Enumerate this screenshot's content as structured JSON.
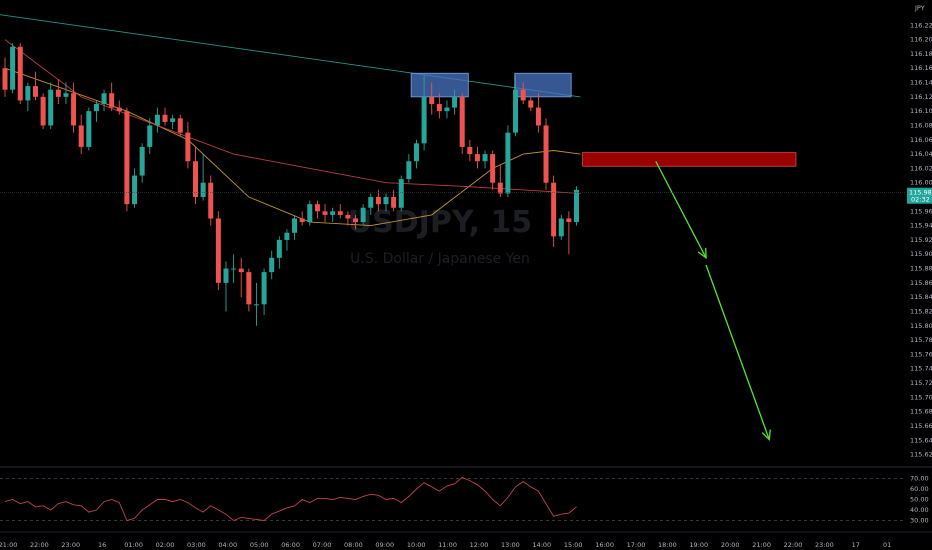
{
  "chart_data": {
    "type": "candlestick",
    "symbol_watermark": "USDJPY, 15",
    "watermark_subtitle": "U.S. Dollar / Japanese Yen",
    "currency": "JPY",
    "price_axis": {
      "ylim": [
        115.618,
        116.24
      ],
      "ticks": [
        "116.220",
        "116.200",
        "116.180",
        "116.160",
        "116.140",
        "116.120",
        "116.100",
        "116.080",
        "116.060",
        "116.040",
        "116.020",
        "116.000",
        "115.980",
        "115.960",
        "115.940",
        "115.920",
        "115.900",
        "115.880",
        "115.860",
        "115.840",
        "115.820",
        "115.800",
        "115.780",
        "115.760",
        "115.740",
        "115.720",
        "115.700",
        "115.680",
        "115.660",
        "115.640",
        "115.620"
      ],
      "last_price": "115.986",
      "countdown": "02:32"
    },
    "time_axis": {
      "labels": [
        "21:00",
        "22:00",
        "23:00",
        "16",
        "01:00",
        "02:00",
        "03:00",
        "04:00",
        "05:00",
        "06:00",
        "07:00",
        "08:00",
        "09:00",
        "10:00",
        "11:00",
        "12:00",
        "13:00",
        "14:00",
        "15:00",
        "16:00",
        "17:00",
        "18:00",
        "19:00",
        "20:00",
        "21:00",
        "22:00",
        "23:00",
        "17",
        "01"
      ]
    },
    "candles": [
      {
        "o": 116.16,
        "h": 116.175,
        "l": 116.12,
        "c": 116.13
      },
      {
        "o": 116.13,
        "h": 116.195,
        "l": 116.125,
        "c": 116.19
      },
      {
        "o": 116.19,
        "h": 116.195,
        "l": 116.11,
        "c": 116.115
      },
      {
        "o": 116.115,
        "h": 116.14,
        "l": 116.1,
        "c": 116.135
      },
      {
        "o": 116.135,
        "h": 116.155,
        "l": 116.115,
        "c": 116.12
      },
      {
        "o": 116.12,
        "h": 116.125,
        "l": 116.075,
        "c": 116.08
      },
      {
        "o": 116.08,
        "h": 116.14,
        "l": 116.075,
        "c": 116.13
      },
      {
        "o": 116.13,
        "h": 116.145,
        "l": 116.11,
        "c": 116.12
      },
      {
        "o": 116.12,
        "h": 116.14,
        "l": 116.11,
        "c": 116.125
      },
      {
        "o": 116.125,
        "h": 116.14,
        "l": 116.07,
        "c": 116.08
      },
      {
        "o": 116.08,
        "h": 116.095,
        "l": 116.04,
        "c": 116.05
      },
      {
        "o": 116.05,
        "h": 116.105,
        "l": 116.045,
        "c": 116.1
      },
      {
        "o": 116.1,
        "h": 116.115,
        "l": 116.085,
        "c": 116.11
      },
      {
        "o": 116.11,
        "h": 116.13,
        "l": 116.1,
        "c": 116.125
      },
      {
        "o": 116.125,
        "h": 116.14,
        "l": 116.1,
        "c": 116.105
      },
      {
        "o": 116.105,
        "h": 116.115,
        "l": 116.095,
        "c": 116.1
      },
      {
        "o": 116.1,
        "h": 116.105,
        "l": 115.96,
        "c": 115.97
      },
      {
        "o": 115.97,
        "h": 116.02,
        "l": 115.965,
        "c": 116.01
      },
      {
        "o": 116.01,
        "h": 116.055,
        "l": 116.0,
        "c": 116.05
      },
      {
        "o": 116.05,
        "h": 116.09,
        "l": 116.04,
        "c": 116.08
      },
      {
        "o": 116.08,
        "h": 116.105,
        "l": 116.07,
        "c": 116.095
      },
      {
        "o": 116.095,
        "h": 116.105,
        "l": 116.08,
        "c": 116.085
      },
      {
        "o": 116.085,
        "h": 116.095,
        "l": 116.075,
        "c": 116.09
      },
      {
        "o": 116.09,
        "h": 116.095,
        "l": 116.065,
        "c": 116.07
      },
      {
        "o": 116.07,
        "h": 116.085,
        "l": 116.02,
        "c": 116.03
      },
      {
        "o": 116.03,
        "h": 116.05,
        "l": 115.97,
        "c": 115.98
      },
      {
        "o": 115.98,
        "h": 116.04,
        "l": 115.975,
        "c": 116.0
      },
      {
        "o": 116.0,
        "h": 116.01,
        "l": 115.94,
        "c": 115.95
      },
      {
        "o": 115.95,
        "h": 115.96,
        "l": 115.85,
        "c": 115.86
      },
      {
        "o": 115.86,
        "h": 115.89,
        "l": 115.82,
        "c": 115.88
      },
      {
        "o": 115.88,
        "h": 115.9,
        "l": 115.86,
        "c": 115.88
      },
      {
        "o": 115.88,
        "h": 115.895,
        "l": 115.84,
        "c": 115.875
      },
      {
        "o": 115.875,
        "h": 115.88,
        "l": 115.82,
        "c": 115.83
      },
      {
        "o": 115.83,
        "h": 115.86,
        "l": 115.8,
        "c": 115.83
      },
      {
        "o": 115.83,
        "h": 115.88,
        "l": 115.815,
        "c": 115.875
      },
      {
        "o": 115.875,
        "h": 115.905,
        "l": 115.865,
        "c": 115.895
      },
      {
        "o": 115.895,
        "h": 115.925,
        "l": 115.88,
        "c": 115.92
      },
      {
        "o": 115.92,
        "h": 115.935,
        "l": 115.905,
        "c": 115.93
      },
      {
        "o": 115.93,
        "h": 115.955,
        "l": 115.92,
        "c": 115.95
      },
      {
        "o": 115.95,
        "h": 115.96,
        "l": 115.94,
        "c": 115.945
      },
      {
        "o": 115.945,
        "h": 115.975,
        "l": 115.94,
        "c": 115.97
      },
      {
        "o": 115.97,
        "h": 115.975,
        "l": 115.95,
        "c": 115.96
      },
      {
        "o": 115.96,
        "h": 115.97,
        "l": 115.945,
        "c": 115.955
      },
      {
        "o": 115.955,
        "h": 115.965,
        "l": 115.945,
        "c": 115.96
      },
      {
        "o": 115.96,
        "h": 115.97,
        "l": 115.95,
        "c": 115.955
      },
      {
        "o": 115.955,
        "h": 115.96,
        "l": 115.94,
        "c": 115.95
      },
      {
        "o": 115.95,
        "h": 115.955,
        "l": 115.935,
        "c": 115.945
      },
      {
        "o": 115.945,
        "h": 115.97,
        "l": 115.94,
        "c": 115.965
      },
      {
        "o": 115.965,
        "h": 115.985,
        "l": 115.955,
        "c": 115.98
      },
      {
        "o": 115.98,
        "h": 115.99,
        "l": 115.96,
        "c": 115.97
      },
      {
        "o": 115.97,
        "h": 115.985,
        "l": 115.96,
        "c": 115.98
      },
      {
        "o": 115.98,
        "h": 115.99,
        "l": 115.96,
        "c": 115.965
      },
      {
        "o": 115.965,
        "h": 116.01,
        "l": 115.96,
        "c": 116.005
      },
      {
        "o": 116.005,
        "h": 116.04,
        "l": 116.0,
        "c": 116.03
      },
      {
        "o": 116.03,
        "h": 116.06,
        "l": 116.02,
        "c": 116.055
      },
      {
        "o": 116.055,
        "h": 116.15,
        "l": 116.045,
        "c": 116.12
      },
      {
        "o": 116.12,
        "h": 116.14,
        "l": 116.095,
        "c": 116.11
      },
      {
        "o": 116.11,
        "h": 116.125,
        "l": 116.09,
        "c": 116.1
      },
      {
        "o": 116.1,
        "h": 116.115,
        "l": 116.09,
        "c": 116.105
      },
      {
        "o": 116.105,
        "h": 116.13,
        "l": 116.095,
        "c": 116.12
      },
      {
        "o": 116.12,
        "h": 116.125,
        "l": 116.04,
        "c": 116.05
      },
      {
        "o": 116.05,
        "h": 116.06,
        "l": 116.03,
        "c": 116.04
      },
      {
        "o": 116.04,
        "h": 116.05,
        "l": 116.02,
        "c": 116.03
      },
      {
        "o": 116.03,
        "h": 116.045,
        "l": 116.02,
        "c": 116.04
      },
      {
        "o": 116.04,
        "h": 116.045,
        "l": 115.99,
        "c": 116.0
      },
      {
        "o": 116.0,
        "h": 116.025,
        "l": 115.98,
        "c": 115.985
      },
      {
        "o": 115.985,
        "h": 116.08,
        "l": 115.98,
        "c": 116.07
      },
      {
        "o": 116.07,
        "h": 116.15,
        "l": 116.065,
        "c": 116.13
      },
      {
        "o": 116.13,
        "h": 116.14,
        "l": 116.11,
        "c": 116.115
      },
      {
        "o": 116.115,
        "h": 116.12,
        "l": 116.1,
        "c": 116.105
      },
      {
        "o": 116.105,
        "h": 116.125,
        "l": 116.07,
        "c": 116.08
      },
      {
        "o": 116.08,
        "h": 116.09,
        "l": 115.99,
        "c": 116.0
      },
      {
        "o": 116.0,
        "h": 116.01,
        "l": 115.91,
        "c": 115.925
      },
      {
        "o": 115.925,
        "h": 115.955,
        "l": 115.92,
        "c": 115.95
      },
      {
        "o": 115.95,
        "h": 115.96,
        "l": 115.9,
        "c": 115.945
      },
      {
        "o": 115.945,
        "h": 115.995,
        "l": 115.94,
        "c": 115.99
      }
    ],
    "moving_averages": [
      {
        "color": "#2bb3a3",
        "points": [
          [
            -4,
            116.2398
          ],
          [
            75.5,
            116.12
          ]
        ]
      },
      {
        "color": "#e0aa3a",
        "points": [
          [
            0,
            116.16
          ],
          [
            8,
            116.13
          ],
          [
            16,
            116.1
          ],
          [
            24,
            116.06
          ],
          [
            32,
            115.98
          ],
          [
            40,
            115.945
          ],
          [
            48,
            115.94
          ],
          [
            56,
            115.955
          ],
          [
            64,
            116.02
          ],
          [
            68,
            116.04
          ],
          [
            72,
            116.045
          ],
          [
            75.5,
            116.04
          ]
        ]
      },
      {
        "color": "#d84b4b",
        "points": [
          [
            0,
            116.2
          ],
          [
            10,
            116.12
          ],
          [
            20,
            116.08
          ],
          [
            30,
            116.04
          ],
          [
            40,
            116.02
          ],
          [
            50,
            116.0
          ],
          [
            60,
            115.995
          ],
          [
            68,
            115.99
          ],
          [
            75.5,
            115.985
          ]
        ]
      }
    ],
    "zones": [
      {
        "type": "resistance_top",
        "color": "#4a74c4",
        "x0": 53.3,
        "x1": 60.8,
        "y0": 116.12,
        "y1": 116.153
      },
      {
        "type": "resistance_top",
        "color": "#4a74c4",
        "x0": 66.9,
        "x1": 74.3,
        "y0": 116.12,
        "y1": 116.153
      },
      {
        "type": "supply",
        "color": "#a30000",
        "x0": 75.8,
        "x1": 103.8,
        "y0": 116.023,
        "y1": 116.042
      }
    ],
    "arrows": [
      {
        "color": "#55e62a",
        "points": [
          [
            85.4,
            116.03
          ],
          [
            92.0,
            115.895
          ]
        ]
      },
      {
        "color": "#55e62a",
        "points": [
          [
            92.0,
            115.885
          ],
          [
            100.3,
            115.641
          ]
        ]
      }
    ],
    "oscillator": {
      "ylim": [
        20,
        80
      ],
      "ticks": [
        "70.00",
        "60.00",
        "50.00",
        "40.00",
        "30.00"
      ],
      "levels": [
        70,
        30
      ],
      "values": [
        48,
        50,
        46,
        48,
        43,
        44,
        40,
        46,
        48,
        45,
        44,
        38,
        40,
        48,
        50,
        47,
        30,
        32,
        40,
        45,
        50,
        50,
        48,
        50,
        47,
        42,
        38,
        44,
        40,
        36,
        30,
        33,
        32,
        31,
        30,
        36,
        39,
        42,
        44,
        50,
        47,
        51,
        51,
        50,
        52,
        51,
        50,
        53,
        55,
        54,
        50,
        51,
        47,
        53,
        60,
        66,
        62,
        58,
        63,
        65,
        71,
        68,
        64,
        58,
        50,
        44,
        52,
        62,
        67,
        62,
        58,
        46,
        34,
        36,
        37,
        43
      ]
    }
  }
}
